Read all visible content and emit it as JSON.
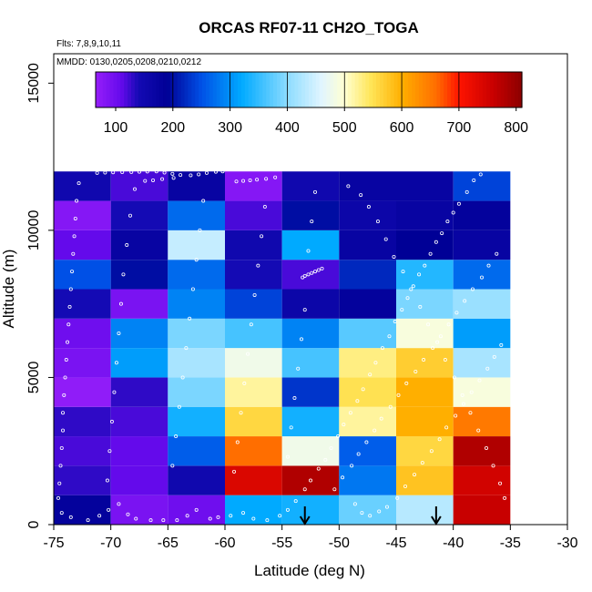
{
  "chart_data": {
    "type": "heatmap",
    "title": "ORCAS RF07-11 CH2O_TOGA",
    "subtitle_flights": "Flts: 7,8,9,10,11",
    "subtitle_dates": "MMDD: 0130,0205,0208,0210,0212",
    "xlabel": "Latitude (deg N)",
    "ylabel": "Altitude (m)",
    "xlim": [
      -75,
      -30
    ],
    "ylim": [
      0,
      16000
    ],
    "x_ticks": [
      -75,
      -70,
      -65,
      -60,
      -55,
      -50,
      -45,
      -40,
      -35,
      -30
    ],
    "y_ticks": [
      0,
      5000,
      10000,
      15000
    ],
    "x_bin_edges": [
      -75,
      -70,
      -65,
      -60,
      -55,
      -50,
      -45,
      -40,
      -35
    ],
    "y_bin_edges": [
      0,
      1000,
      2000,
      3000,
      4000,
      5000,
      6000,
      7000,
      8000,
      9000,
      10000,
      11000,
      12000
    ],
    "values": [
      [
        180,
        90,
        100,
        320,
        330,
        380,
        430,
        760
      ],
      [
        130,
        110,
        150,
        740,
        780,
        280,
        580,
        750
      ],
      [
        120,
        110,
        260,
        660,
        480,
        260,
        560,
        780
      ],
      [
        130,
        120,
        330,
        560,
        330,
        520,
        600,
        650
      ],
      [
        70,
        130,
        390,
        520,
        230,
        550,
        600,
        490
      ],
      [
        90,
        310,
        420,
        480,
        360,
        530,
        570,
        420
      ],
      [
        100,
        290,
        390,
        360,
        290,
        370,
        490,
        310
      ],
      [
        140,
        90,
        290,
        240,
        160,
        180,
        390,
        410
      ],
      [
        250,
        200,
        270,
        140,
        120,
        220,
        340,
        270
      ],
      [
        110,
        170,
        440,
        150,
        320,
        170,
        190,
        170
      ],
      [
        80,
        140,
        270,
        120,
        200,
        160,
        170,
        180
      ],
      [
        150,
        120,
        170,
        80,
        150,
        170,
        170,
        240
      ]
    ],
    "arrows_latitude": [
      -53,
      -41.5
    ],
    "colorbar": {
      "min": 65,
      "max": 810,
      "ticks": [
        100,
        200,
        300,
        400,
        500,
        600,
        700,
        800
      ],
      "divider_values": [
        200,
        300,
        400,
        500,
        600,
        700
      ]
    },
    "flight_track_points": [
      [
        -71.2,
        11950
      ],
      [
        -70.5,
        11960
      ],
      [
        -69.8,
        11970
      ],
      [
        -69.0,
        11975
      ],
      [
        -68.2,
        11980
      ],
      [
        -67.5,
        11990
      ],
      [
        -66.8,
        11995
      ],
      [
        -66.0,
        12000
      ],
      [
        -65.3,
        11960
      ],
      [
        -64.6,
        11920
      ],
      [
        -63.9,
        11880
      ],
      [
        -63.0,
        11870
      ],
      [
        -62.3,
        11900
      ],
      [
        -61.6,
        11950
      ],
      [
        -60.8,
        11990
      ],
      [
        -60.2,
        12000
      ],
      [
        -55.6,
        11800
      ],
      [
        -56.4,
        11750
      ],
      [
        -57.2,
        11720
      ],
      [
        -57.8,
        11700
      ],
      [
        -58.4,
        11680
      ],
      [
        -59.0,
        11660
      ],
      [
        -64.5,
        11780
      ],
      [
        -65.5,
        11740
      ],
      [
        -66.3,
        11700
      ],
      [
        -67.0,
        11680
      ],
      [
        -51.5,
        8700
      ],
      [
        -51.8,
        8650
      ],
      [
        -52.1,
        8600
      ],
      [
        -52.4,
        8550
      ],
      [
        -52.7,
        8500
      ],
      [
        -53.0,
        8450
      ],
      [
        -53.2,
        8400
      ],
      [
        -74.3,
        400
      ],
      [
        -73.5,
        250
      ],
      [
        -72.0,
        150
      ],
      [
        -71.0,
        300
      ],
      [
        -70.2,
        500
      ],
      [
        -69.3,
        700
      ],
      [
        -68.5,
        350
      ],
      [
        -67.8,
        200
      ],
      [
        -66.5,
        150
      ],
      [
        -65.4,
        150
      ],
      [
        -64.2,
        150
      ],
      [
        -63.3,
        300
      ],
      [
        -62.5,
        500
      ],
      [
        -61.3,
        200
      ],
      [
        -60.6,
        250
      ],
      [
        -59.5,
        300
      ],
      [
        -58.4,
        400
      ],
      [
        -57.5,
        200
      ],
      [
        -56.3,
        150
      ],
      [
        -55.2,
        300
      ],
      [
        -54.5,
        500
      ],
      [
        -53.8,
        800
      ],
      [
        -53.0,
        1200
      ],
      [
        -52.5,
        1500
      ],
      [
        -51.8,
        1900
      ],
      [
        -51.2,
        2200
      ],
      [
        -50.7,
        2600
      ],
      [
        -50.1,
        3000
      ],
      [
        -49.6,
        3400
      ],
      [
        -49.0,
        3800
      ],
      [
        -48.4,
        4200
      ],
      [
        -47.9,
        4600
      ],
      [
        -47.3,
        5100
      ],
      [
        -46.8,
        5500
      ],
      [
        -46.2,
        6000
      ],
      [
        -45.6,
        6400
      ],
      [
        -45.1,
        6900
      ],
      [
        -44.5,
        7300
      ],
      [
        -44.0,
        7700
      ],
      [
        -43.5,
        8100
      ],
      [
        -43.0,
        8500
      ],
      [
        -42.5,
        8800
      ],
      [
        -42.0,
        9200
      ],
      [
        -41.5,
        9600
      ],
      [
        -41.0,
        9900
      ],
      [
        -40.5,
        10300
      ],
      [
        -40.0,
        10600
      ],
      [
        -39.5,
        10900
      ],
      [
        -38.8,
        11300
      ],
      [
        -38.2,
        11700
      ],
      [
        -37.6,
        11900
      ],
      [
        -74.6,
        900
      ],
      [
        -74.5,
        1400
      ],
      [
        -74.4,
        2000
      ],
      [
        -74.3,
        2600
      ],
      [
        -74.2,
        3200
      ],
      [
        -74.2,
        3800
      ],
      [
        -74.1,
        4400
      ],
      [
        -74.0,
        5000
      ],
      [
        -73.9,
        5600
      ],
      [
        -73.8,
        6200
      ],
      [
        -73.7,
        6800
      ],
      [
        -73.6,
        7400
      ],
      [
        -73.5,
        8000
      ],
      [
        -73.4,
        8600
      ],
      [
        -73.3,
        9200
      ],
      [
        -73.2,
        9800
      ],
      [
        -73.1,
        10400
      ],
      [
        -73.0,
        11000
      ],
      [
        -72.8,
        11600
      ],
      [
        -70.3,
        1500
      ],
      [
        -70.1,
        2500
      ],
      [
        -69.9,
        3500
      ],
      [
        -69.7,
        4500
      ],
      [
        -69.5,
        5500
      ],
      [
        -69.3,
        6500
      ],
      [
        -69.1,
        7500
      ],
      [
        -68.9,
        8500
      ],
      [
        -68.6,
        9500
      ],
      [
        -68.3,
        10500
      ],
      [
        -67.9,
        11400
      ],
      [
        -64.6,
        2000
      ],
      [
        -64.3,
        3000
      ],
      [
        -64.0,
        4000
      ],
      [
        -63.7,
        5000
      ],
      [
        -63.4,
        6000
      ],
      [
        -63.1,
        7000
      ],
      [
        -62.8,
        8000
      ],
      [
        -62.5,
        9000
      ],
      [
        -62.2,
        10000
      ],
      [
        -61.9,
        11000
      ],
      [
        -59.2,
        1800
      ],
      [
        -58.9,
        2800
      ],
      [
        -58.6,
        3800
      ],
      [
        -58.3,
        4800
      ],
      [
        -58.0,
        5800
      ],
      [
        -57.7,
        6800
      ],
      [
        -57.4,
        7800
      ],
      [
        -57.1,
        8800
      ],
      [
        -56.8,
        9800
      ],
      [
        -56.5,
        10800
      ],
      [
        -54.5,
        2300
      ],
      [
        -54.2,
        3300
      ],
      [
        -53.9,
        4300
      ],
      [
        -53.6,
        5300
      ],
      [
        -53.3,
        6300
      ],
      [
        -53.0,
        7300
      ],
      [
        -52.7,
        9300
      ],
      [
        -52.4,
        10300
      ],
      [
        -52.1,
        11300
      ],
      [
        -48.6,
        700
      ],
      [
        -48.0,
        400
      ],
      [
        -47.3,
        300
      ],
      [
        -46.5,
        450
      ],
      [
        -45.8,
        600
      ],
      [
        -44.9,
        900
      ],
      [
        -44.2,
        1300
      ],
      [
        -43.4,
        1700
      ],
      [
        -42.7,
        2100
      ],
      [
        -41.9,
        2500
      ],
      [
        -41.2,
        2900
      ],
      [
        -40.6,
        3300
      ],
      [
        -39.8,
        3700
      ],
      [
        -39.1,
        4100
      ],
      [
        -38.4,
        4500
      ],
      [
        -37.7,
        4900
      ],
      [
        -37.0,
        5300
      ],
      [
        -36.4,
        5700
      ],
      [
        -35.8,
        6100
      ],
      [
        -50.4,
        1200
      ],
      [
        -49.7,
        1600
      ],
      [
        -48.9,
        2000
      ],
      [
        -48.3,
        2400
      ],
      [
        -47.6,
        2800
      ],
      [
        -46.9,
        3200
      ],
      [
        -46.3,
        3600
      ],
      [
        -45.5,
        4000
      ],
      [
        -44.8,
        4400
      ],
      [
        -44.1,
        4800
      ],
      [
        -43.3,
        5200
      ],
      [
        -42.6,
        5600
      ],
      [
        -41.8,
        6000
      ],
      [
        -41.1,
        6400
      ],
      [
        -40.4,
        6800
      ],
      [
        -39.7,
        7200
      ],
      [
        -39.0,
        7600
      ],
      [
        -38.3,
        8000
      ],
      [
        -37.5,
        8400
      ],
      [
        -36.9,
        8800
      ],
      [
        -36.2,
        9200
      ],
      [
        -49.2,
        11500
      ],
      [
        -48.1,
        11200
      ],
      [
        -47.4,
        10800
      ],
      [
        -46.6,
        10300
      ],
      [
        -45.9,
        9700
      ],
      [
        -45.2,
        9100
      ],
      [
        -44.4,
        8600
      ],
      [
        -43.7,
        8000
      ],
      [
        -42.9,
        7400
      ],
      [
        -42.2,
        6800
      ],
      [
        -41.4,
        6200
      ],
      [
        -40.7,
        5600
      ],
      [
        -39.9,
        5000
      ],
      [
        -39.2,
        4400
      ],
      [
        -38.5,
        3800
      ],
      [
        -37.8,
        3200
      ],
      [
        -37.1,
        2600
      ],
      [
        -36.5,
        2000
      ],
      [
        -35.9,
        1400
      ],
      [
        -35.5,
        900
      ]
    ]
  }
}
